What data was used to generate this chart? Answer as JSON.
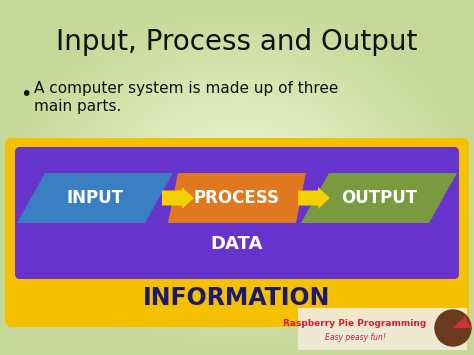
{
  "title": "Input, Process and Output",
  "bullet_text1": "A computer system is made up of three",
  "bullet_text2": "main parts.",
  "bg_color": "#c8d896",
  "bg_color_center": "#eef4d0",
  "outer_box_color": "#f5c000",
  "inner_box_color": "#6633cc",
  "input_box_color": "#3a7fc1",
  "process_box_color": "#e07820",
  "output_box_color": "#7a9a40",
  "arrow_color": "#f5d000",
  "input_label": "INPUT",
  "process_label": "PROCESS",
  "output_label": "OUTPUT",
  "data_label": "DATA",
  "info_label": "INFORMATION",
  "box_text_color": "#ffffff",
  "data_text_color": "#ffffff",
  "info_text_color": "#1a1a70",
  "title_color": "#111111",
  "bullet_color": "#111111",
  "watermark_text1": "Raspberry Pie Programming",
  "watermark_text2": "Easy peasy fun!",
  "watermark_color": "#cc2233",
  "watermark_bg": "#f0ead8"
}
